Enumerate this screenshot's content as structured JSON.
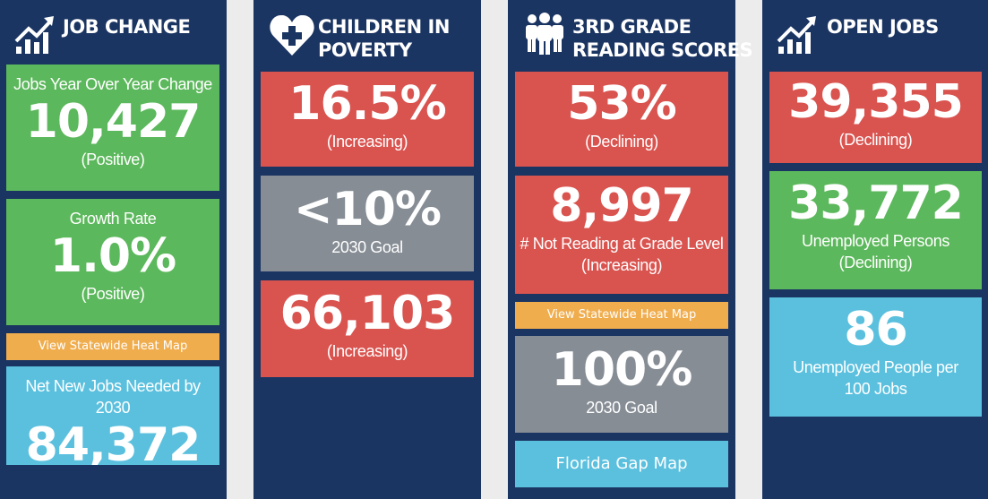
{
  "colors": {
    "column_bg": "#1b3562",
    "page_bg": "#ececec",
    "positive": "#5cb85c",
    "negative": "#d9534f",
    "goal": "#868d95",
    "info": "#5bc0de",
    "link": "#f0ad4e"
  },
  "job_change": {
    "icon": "growth-chart-icon",
    "title": "JOB CHANGE",
    "yoy": {
      "label": "Jobs Year Over Year Change",
      "value": "10,427",
      "status": "(Positive)"
    },
    "growth": {
      "label": "Growth Rate",
      "value": "1.0%",
      "status": "(Positive)"
    },
    "heat_map_button": "View Statewide Heat Map",
    "net_new": {
      "label": "Net New Jobs Needed by 2030",
      "value": "84,372"
    }
  },
  "children_poverty": {
    "icon": "heart-plus-icon",
    "title_line1": "CHILDREN IN",
    "title_line2": "POVERTY",
    "rate": {
      "value": "16.5%",
      "status": "(Increasing)"
    },
    "goal": {
      "value": "<10%",
      "label": "2030 Goal"
    },
    "count": {
      "value": "66,103",
      "status": "(Increasing)"
    }
  },
  "reading": {
    "icon": "people-group-icon",
    "title_line1": "3RD GRADE",
    "title_line2": "READING SCORES",
    "score": {
      "value": "53%",
      "status": "(Declining)"
    },
    "not_reading": {
      "value": "8,997",
      "label": "# Not Reading at Grade Level",
      "status": "(Increasing)"
    },
    "heat_map_button": "View Statewide Heat Map",
    "goal": {
      "value": "100%",
      "label": "2030 Goal"
    },
    "gap_map_button": "Florida Gap Map"
  },
  "open_jobs": {
    "icon": "growth-chart-icon",
    "title": "OPEN JOBS",
    "open": {
      "value": "39,355",
      "status": "(Declining)"
    },
    "unemployed": {
      "value": "33,772",
      "label": "Unemployed Persons",
      "status": "(Declining)"
    },
    "ratio": {
      "value": "86",
      "label": "Unemployed People per 100 Jobs"
    }
  }
}
